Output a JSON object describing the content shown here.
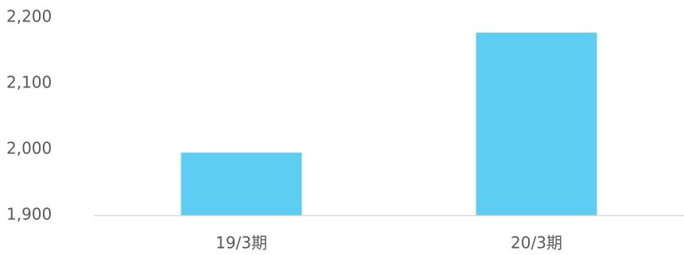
{
  "chart_data": {
    "type": "bar",
    "categories": [
      "19/3期",
      "20/3期"
    ],
    "values": [
      1995,
      2177
    ],
    "title": "",
    "xlabel": "",
    "ylabel": "",
    "ylim": [
      1900,
      2200
    ],
    "yticks": [
      "1,900",
      "2,000",
      "2,100",
      "2,200"
    ],
    "ytick_values": [
      1900,
      2000,
      2100,
      2200
    ],
    "grid": false,
    "legend": "none",
    "colors": {
      "bar": "#5ecdf2",
      "axis": "#d9d9d9",
      "text": "#595959"
    }
  }
}
